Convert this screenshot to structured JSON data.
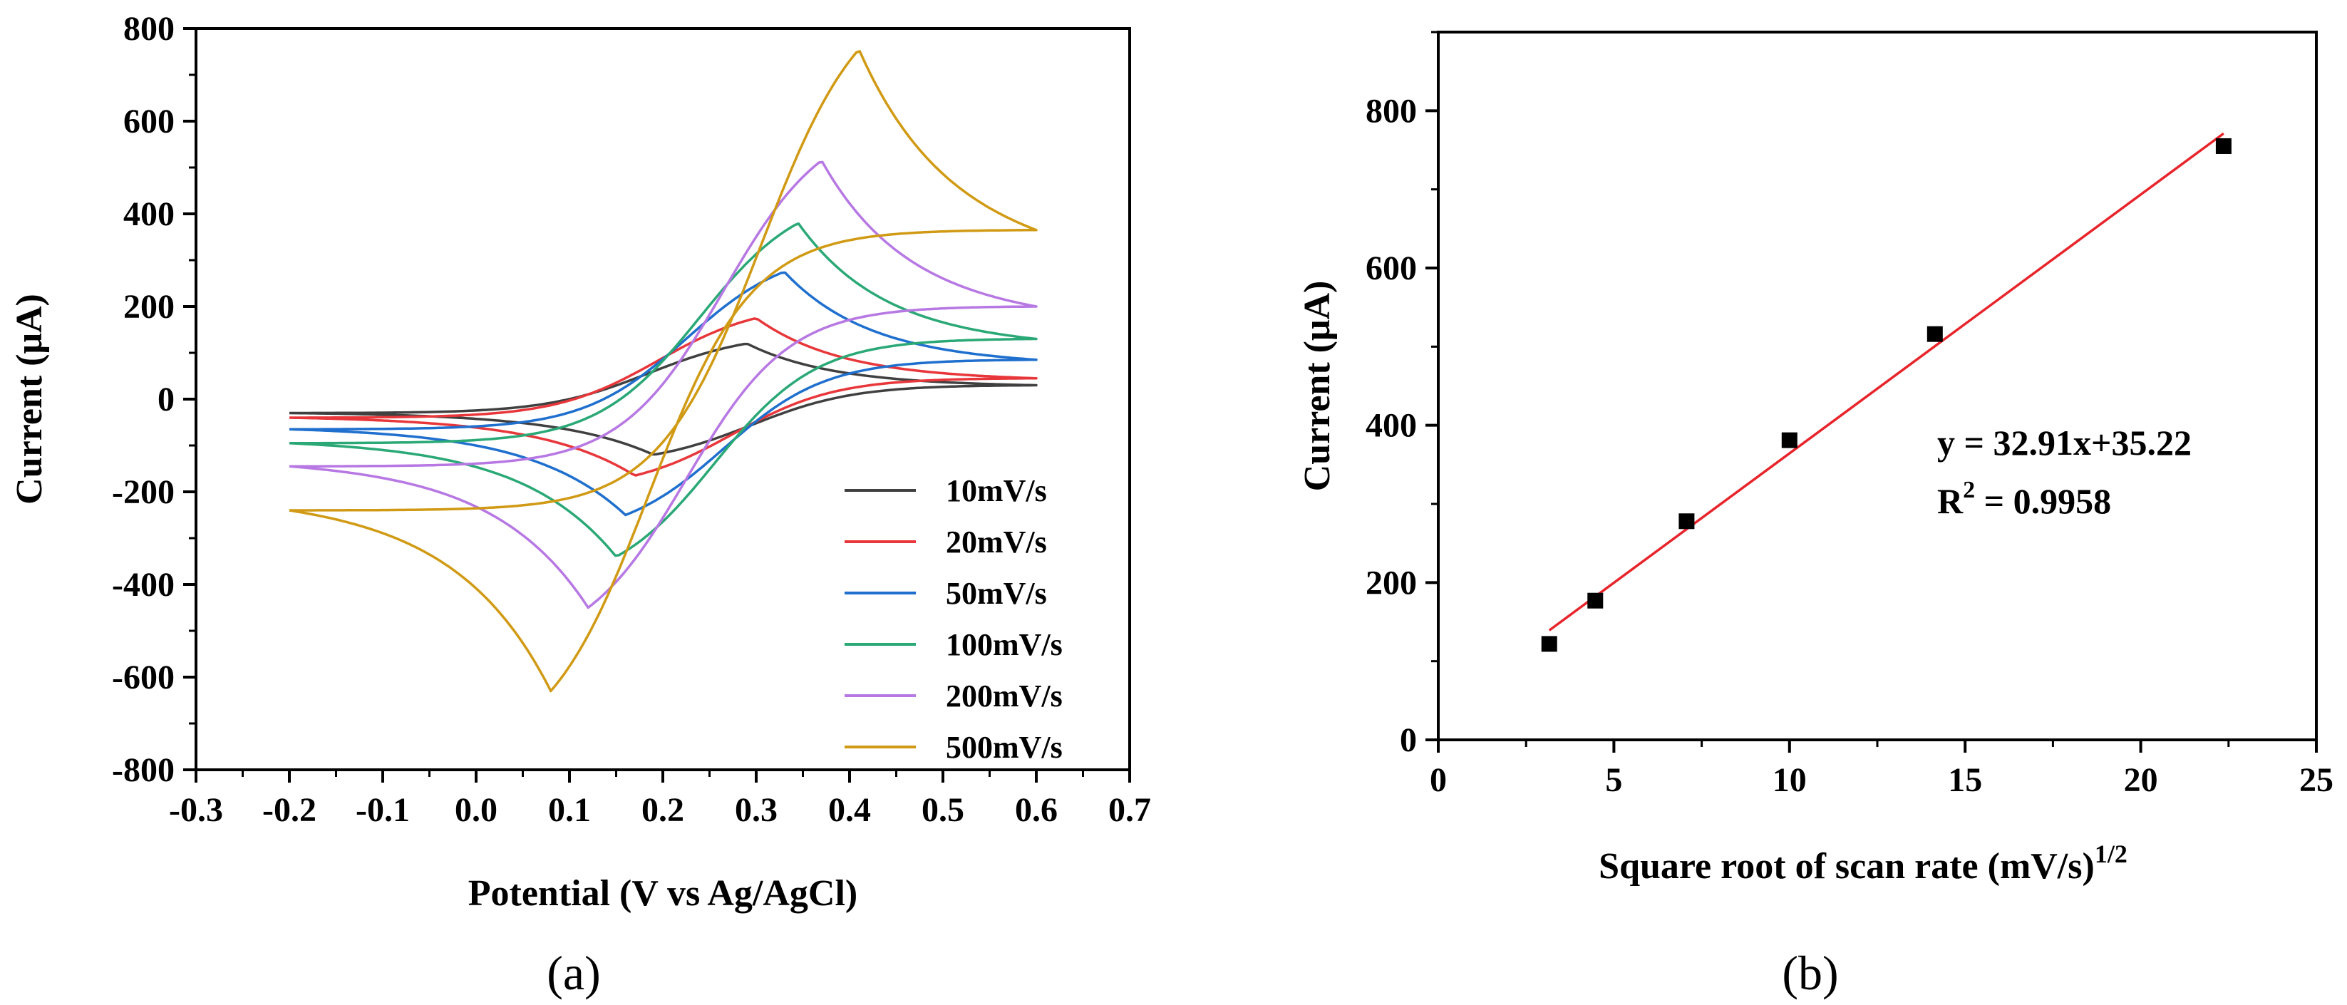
{
  "panels": {
    "a": {
      "label": "(a)"
    },
    "b": {
      "label": "(b)"
    }
  },
  "chart_data": [
    {
      "type": "line",
      "xlabel": "Potential (V vs Ag/AgCl)",
      "ylabel": "Current (μA)",
      "xlim": [
        -0.3,
        0.7
      ],
      "ylim": [
        -800,
        800
      ],
      "xticks": [
        "-0.3",
        "-0.2",
        "-0.1",
        "0.0",
        "0.1",
        "0.2",
        "0.3",
        "0.4",
        "0.5",
        "0.6",
        "0.7"
      ],
      "yticks": [
        "-800",
        "-600",
        "-400",
        "-200",
        "0",
        "200",
        "400",
        "600",
        "800"
      ],
      "grid": false,
      "legend_position": "bottom-right",
      "potential_range": [
        -0.2,
        0.6
      ],
      "series": [
        {
          "name": "10mV/s",
          "color": "#404040",
          "anodic_peak": [
            0.29,
            120
          ],
          "cathodic_peak": [
            0.19,
            -120
          ],
          "start_current": -30,
          "end_current": 30
        },
        {
          "name": "20mV/s",
          "color": "#e8373b",
          "anodic_peak": [
            0.3,
            175
          ],
          "cathodic_peak": [
            0.17,
            -165
          ],
          "start_current": -40,
          "end_current": 45
        },
        {
          "name": "50mV/s",
          "color": "#1f6fce",
          "anodic_peak": [
            0.33,
            275
          ],
          "cathodic_peak": [
            0.16,
            -250
          ],
          "start_current": -65,
          "end_current": 85
        },
        {
          "name": "100mV/s",
          "color": "#2aa876",
          "anodic_peak": [
            0.345,
            380
          ],
          "cathodic_peak": [
            0.15,
            -340
          ],
          "start_current": -95,
          "end_current": 130
        },
        {
          "name": "200mV/s",
          "color": "#b778e3",
          "anodic_peak": [
            0.37,
            515
          ],
          "cathodic_peak": [
            0.12,
            -450
          ],
          "start_current": -145,
          "end_current": 200
        },
        {
          "name": "500mV/s",
          "color": "#d19a14",
          "anodic_peak": [
            0.41,
            755
          ],
          "cathodic_peak": [
            0.08,
            -630
          ],
          "start_current": -240,
          "end_current": 365
        }
      ]
    },
    {
      "type": "scatter",
      "xlabel": "Square root of scan rate (mV/s)",
      "xlabel_superscript": "1/2",
      "ylabel": "Current (μA)",
      "xlim": [
        0,
        25
      ],
      "ylim": [
        0,
        900
      ],
      "xticks": [
        "0",
        "5",
        "10",
        "15",
        "20",
        "25"
      ],
      "yticks": [
        "0",
        "200",
        "400",
        "600",
        "800"
      ],
      "grid": false,
      "points": [
        {
          "x": 3.16,
          "y": 122
        },
        {
          "x": 4.47,
          "y": 177
        },
        {
          "x": 7.07,
          "y": 278
        },
        {
          "x": 10.0,
          "y": 381
        },
        {
          "x": 14.14,
          "y": 516
        },
        {
          "x": 22.36,
          "y": 755
        }
      ],
      "marker_color": "#000000",
      "fit": {
        "slope": 32.91,
        "intercept": 35.22,
        "x_range": [
          3.16,
          22.36
        ],
        "color": "#e8242b"
      },
      "equation_line1": "y   = 32.91x+35.22",
      "equation_r_prefix": "R",
      "equation_r_sup": "2",
      "equation_r_value": " = 0.9958"
    }
  ]
}
